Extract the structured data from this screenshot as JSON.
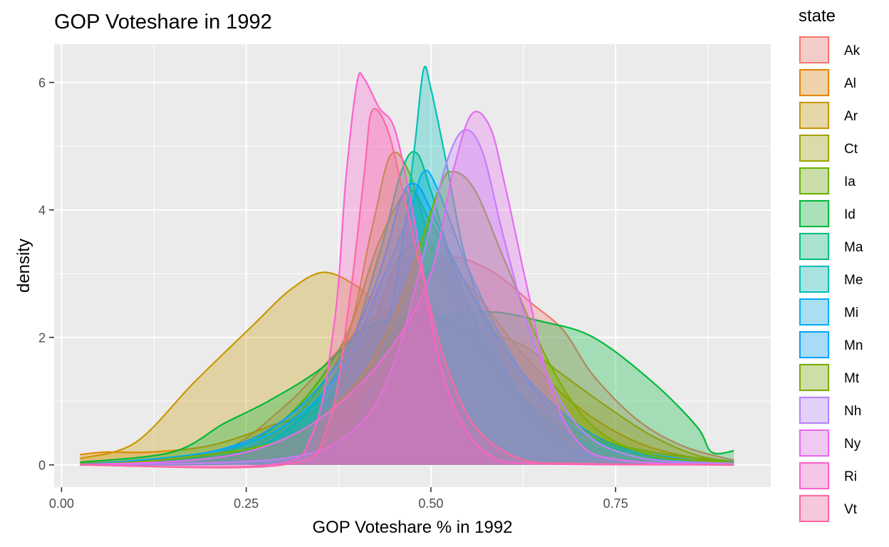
{
  "chart_data": {
    "type": "area",
    "title": "GOP Voteshare in 1992",
    "xlabel": "GOP Voteshare % in 1992",
    "ylabel": "density",
    "xlim": [
      -0.01,
      0.96
    ],
    "ylim": [
      -0.35,
      6.6
    ],
    "x_ticks": [
      "0.00",
      "0.25",
      "0.50",
      "0.75"
    ],
    "y_ticks": [
      "0",
      "2",
      "4",
      "6"
    ],
    "grid": true,
    "legend_title": "state",
    "legend_position": "right",
    "series": [
      {
        "name": "Ak",
        "color": "#F8766D",
        "points": [
          [
            0.025,
            0.03
          ],
          [
            0.2,
            0.15
          ],
          [
            0.3,
            0.9
          ],
          [
            0.4,
            2.1
          ],
          [
            0.47,
            2.7
          ],
          [
            0.52,
            3.25
          ],
          [
            0.58,
            3.05
          ],
          [
            0.64,
            2.5
          ],
          [
            0.68,
            2.1
          ],
          [
            0.72,
            1.4
          ],
          [
            0.78,
            0.7
          ],
          [
            0.84,
            0.3
          ],
          [
            0.9,
            0.1
          ],
          [
            0.91,
            0.08
          ]
        ]
      },
      {
        "name": "Al",
        "color": "#E58700",
        "points": [
          [
            0.025,
            0.16
          ],
          [
            0.06,
            0.2
          ],
          [
            0.12,
            0.2
          ],
          [
            0.2,
            0.3
          ],
          [
            0.28,
            0.6
          ],
          [
            0.36,
            1.0
          ],
          [
            0.42,
            2.2
          ],
          [
            0.46,
            3.3
          ],
          [
            0.5,
            3.4
          ],
          [
            0.56,
            2.7
          ],
          [
            0.62,
            1.8
          ],
          [
            0.7,
            0.9
          ],
          [
            0.78,
            0.35
          ],
          [
            0.86,
            0.1
          ],
          [
            0.91,
            0.04
          ]
        ]
      },
      {
        "name": "Ar",
        "color": "#C99800",
        "points": [
          [
            0.025,
            0.1
          ],
          [
            0.1,
            0.35
          ],
          [
            0.18,
            1.3
          ],
          [
            0.26,
            2.2
          ],
          [
            0.31,
            2.75
          ],
          [
            0.355,
            3.02
          ],
          [
            0.4,
            2.8
          ],
          [
            0.44,
            2.4
          ],
          [
            0.5,
            2.2
          ],
          [
            0.56,
            2.1
          ],
          [
            0.62,
            1.9
          ],
          [
            0.68,
            1.4
          ],
          [
            0.74,
            0.9
          ],
          [
            0.8,
            0.45
          ],
          [
            0.86,
            0.15
          ],
          [
            0.91,
            0.05
          ]
        ]
      },
      {
        "name": "Ct",
        "color": "#A3A500",
        "points": [
          [
            0.025,
            0.0
          ],
          [
            0.2,
            0.1
          ],
          [
            0.3,
            0.6
          ],
          [
            0.38,
            1.8
          ],
          [
            0.42,
            3.7
          ],
          [
            0.445,
            4.85
          ],
          [
            0.47,
            4.6
          ],
          [
            0.5,
            3.5
          ],
          [
            0.55,
            2.2
          ],
          [
            0.62,
            1.1
          ],
          [
            0.7,
            0.5
          ],
          [
            0.8,
            0.2
          ],
          [
            0.91,
            0.05
          ]
        ]
      },
      {
        "name": "Ia",
        "color": "#6BB100",
        "points": [
          [
            0.025,
            0.0
          ],
          [
            0.2,
            0.15
          ],
          [
            0.3,
            0.7
          ],
          [
            0.38,
            1.9
          ],
          [
            0.43,
            3.5
          ],
          [
            0.47,
            4.3
          ],
          [
            0.5,
            3.8
          ],
          [
            0.56,
            2.6
          ],
          [
            0.62,
            1.5
          ],
          [
            0.7,
            0.6
          ],
          [
            0.8,
            0.15
          ],
          [
            0.91,
            0.03
          ]
        ]
      },
      {
        "name": "Id",
        "color": "#00BA38",
        "points": [
          [
            0.025,
            0.04
          ],
          [
            0.15,
            0.2
          ],
          [
            0.22,
            0.65
          ],
          [
            0.28,
            1.0
          ],
          [
            0.35,
            1.5
          ],
          [
            0.42,
            2.2
          ],
          [
            0.5,
            2.3
          ],
          [
            0.58,
            2.4
          ],
          [
            0.65,
            2.25
          ],
          [
            0.72,
            2.0
          ],
          [
            0.8,
            1.3
          ],
          [
            0.86,
            0.6
          ],
          [
            0.88,
            0.2
          ],
          [
            0.91,
            0.22
          ]
        ]
      },
      {
        "name": "Ma",
        "color": "#00BF7D",
        "points": [
          [
            0.025,
            0.0
          ],
          [
            0.2,
            0.1
          ],
          [
            0.3,
            0.5
          ],
          [
            0.38,
            1.6
          ],
          [
            0.43,
            3.3
          ],
          [
            0.46,
            4.6
          ],
          [
            0.48,
            4.9
          ],
          [
            0.5,
            4.3
          ],
          [
            0.54,
            2.8
          ],
          [
            0.6,
            1.4
          ],
          [
            0.68,
            0.5
          ],
          [
            0.78,
            0.12
          ],
          [
            0.91,
            0.02
          ]
        ]
      },
      {
        "name": "Me",
        "color": "#00C0B8",
        "points": [
          [
            0.025,
            0.0
          ],
          [
            0.3,
            0.05
          ],
          [
            0.38,
            0.4
          ],
          [
            0.43,
            1.6
          ],
          [
            0.46,
            3.4
          ],
          [
            0.478,
            5.0
          ],
          [
            0.49,
            6.2
          ],
          [
            0.5,
            5.9
          ],
          [
            0.52,
            4.8
          ],
          [
            0.55,
            3.1
          ],
          [
            0.6,
            1.5
          ],
          [
            0.66,
            0.5
          ],
          [
            0.74,
            0.1
          ],
          [
            0.91,
            0.0
          ]
        ]
      },
      {
        "name": "Mi",
        "color": "#00B0F6",
        "points": [
          [
            0.025,
            0.0
          ],
          [
            0.2,
            0.2
          ],
          [
            0.3,
            0.6
          ],
          [
            0.38,
            1.5
          ],
          [
            0.43,
            2.8
          ],
          [
            0.47,
            3.9
          ],
          [
            0.49,
            4.6
          ],
          [
            0.51,
            4.3
          ],
          [
            0.55,
            3.1
          ],
          [
            0.6,
            1.9
          ],
          [
            0.66,
            0.9
          ],
          [
            0.74,
            0.3
          ],
          [
            0.84,
            0.07
          ],
          [
            0.91,
            0.02
          ]
        ]
      },
      {
        "name": "Mn",
        "color": "#00A5FF",
        "points": [
          [
            0.025,
            0.0
          ],
          [
            0.2,
            0.2
          ],
          [
            0.3,
            0.7
          ],
          [
            0.38,
            1.7
          ],
          [
            0.43,
            3.0
          ],
          [
            0.46,
            4.2
          ],
          [
            0.48,
            4.4
          ],
          [
            0.5,
            4.0
          ],
          [
            0.54,
            3.0
          ],
          [
            0.6,
            1.8
          ],
          [
            0.67,
            0.9
          ],
          [
            0.75,
            0.3
          ],
          [
            0.85,
            0.08
          ],
          [
            0.91,
            0.05
          ]
        ]
      },
      {
        "name": "Mt",
        "color": "#7CAE00",
        "points": [
          [
            0.025,
            0.0
          ],
          [
            0.15,
            0.1
          ],
          [
            0.3,
            0.4
          ],
          [
            0.4,
            1.3
          ],
          [
            0.46,
            2.6
          ],
          [
            0.51,
            4.3
          ],
          [
            0.53,
            4.6
          ],
          [
            0.56,
            4.3
          ],
          [
            0.6,
            3.2
          ],
          [
            0.66,
            1.6
          ],
          [
            0.72,
            0.6
          ],
          [
            0.8,
            0.15
          ],
          [
            0.91,
            0.04
          ]
        ]
      },
      {
        "name": "Nh",
        "color": "#B983FF",
        "points": [
          [
            0.025,
            0.0
          ],
          [
            0.3,
            0.1
          ],
          [
            0.4,
            0.6
          ],
          [
            0.45,
            1.6
          ],
          [
            0.49,
            3.3
          ],
          [
            0.52,
            4.7
          ],
          [
            0.545,
            5.25
          ],
          [
            0.57,
            4.9
          ],
          [
            0.6,
            3.5
          ],
          [
            0.64,
            1.9
          ],
          [
            0.7,
            0.6
          ],
          [
            0.78,
            0.12
          ],
          [
            0.91,
            0.02
          ]
        ]
      },
      {
        "name": "Ny",
        "color": "#E76BF3",
        "points": [
          [
            0.025,
            0.0
          ],
          [
            0.2,
            0.1
          ],
          [
            0.3,
            0.4
          ],
          [
            0.38,
            1.0
          ],
          [
            0.45,
            1.9
          ],
          [
            0.5,
            3.0
          ],
          [
            0.53,
            4.6
          ],
          [
            0.555,
            5.5
          ],
          [
            0.58,
            5.3
          ],
          [
            0.6,
            4.4
          ],
          [
            0.63,
            2.8
          ],
          [
            0.66,
            1.3
          ],
          [
            0.7,
            0.35
          ],
          [
            0.76,
            0.07
          ],
          [
            0.91,
            0.0
          ]
        ]
      },
      {
        "name": "Ri",
        "color": "#FD61D1",
        "points": [
          [
            0.025,
            0.0
          ],
          [
            0.28,
            0.0
          ],
          [
            0.34,
            0.5
          ],
          [
            0.37,
            2.3
          ],
          [
            0.385,
            4.5
          ],
          [
            0.4,
            6.0
          ],
          [
            0.41,
            6.05
          ],
          [
            0.43,
            5.6
          ],
          [
            0.45,
            5.3
          ],
          [
            0.47,
            4.3
          ],
          [
            0.49,
            3.0
          ],
          [
            0.51,
            1.7
          ],
          [
            0.54,
            0.7
          ],
          [
            0.58,
            0.15
          ],
          [
            0.64,
            0.02
          ],
          [
            0.91,
            0.0
          ]
        ]
      },
      {
        "name": "Vt",
        "color": "#FF67A4",
        "points": [
          [
            0.025,
            0.0
          ],
          [
            0.3,
            0.0
          ],
          [
            0.36,
            0.6
          ],
          [
            0.39,
            2.6
          ],
          [
            0.41,
            4.6
          ],
          [
            0.42,
            5.55
          ],
          [
            0.44,
            5.3
          ],
          [
            0.46,
            4.4
          ],
          [
            0.49,
            2.9
          ],
          [
            0.52,
            1.6
          ],
          [
            0.56,
            0.6
          ],
          [
            0.62,
            0.1
          ],
          [
            0.7,
            0.02
          ],
          [
            0.91,
            0.0
          ]
        ]
      }
    ]
  }
}
